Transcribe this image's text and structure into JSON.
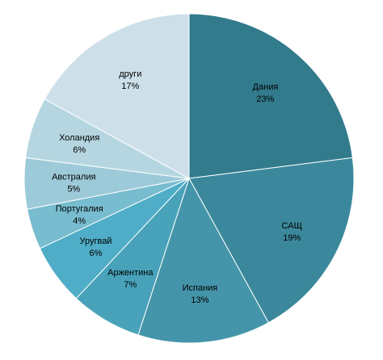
{
  "chart_data": {
    "type": "pie",
    "title": "",
    "legend": "none",
    "start_angle_deg": 0,
    "direction": "clockwise",
    "slices": [
      {
        "label": "Дания",
        "percent_label": "23%",
        "value": 23,
        "color": "#327b8c"
      },
      {
        "label": "САЩ",
        "percent_label": "19%",
        "value": 19,
        "color": "#3b889c"
      },
      {
        "label": "Испания",
        "percent_label": "13%",
        "value": 13,
        "color": "#4495a9"
      },
      {
        "label": "Аржентина",
        "percent_label": "7%",
        "value": 7,
        "color": "#48a2b9"
      },
      {
        "label": "Уругвай",
        "percent_label": "6%",
        "value": 6,
        "color": "#4fadc7"
      },
      {
        "label": "Португалия",
        "percent_label": "4%",
        "value": 4,
        "color": "#78bccf"
      },
      {
        "label": "Австралия",
        "percent_label": "5%",
        "value": 5,
        "color": "#9dcad8"
      },
      {
        "label": "Холандия",
        "percent_label": "6%",
        "value": 6,
        "color": "#b5d6e1"
      },
      {
        "label": "други",
        "percent_label": "17%",
        "value": 17,
        "color": "#cde0ea"
      }
    ]
  }
}
